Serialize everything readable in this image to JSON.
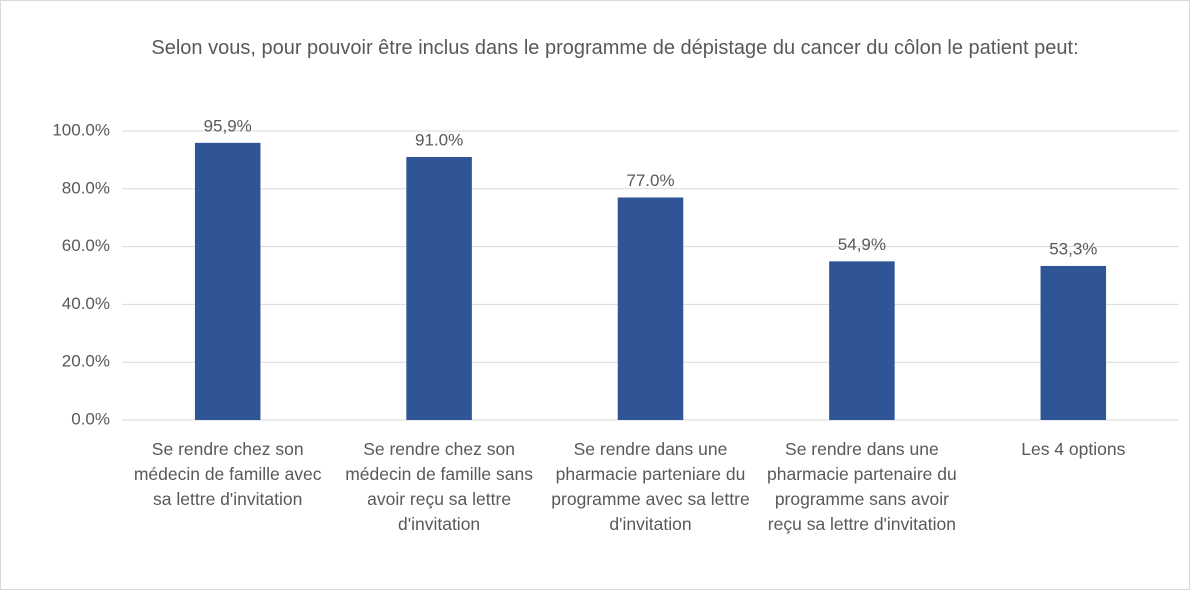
{
  "chart_data": {
    "type": "bar",
    "title": "Selon vous, pour pouvoir être inclus dans le programme de dépistage du cancer du côlon le patient peut:",
    "categories": [
      "Se rendre chez son médecin de famille avec sa lettre d'invitation",
      "Se rendre chez son médecin de famille sans avoir reçu sa lettre d'invitation",
      "Se rendre dans une pharmacie parteniare du programme avec sa lettre d'invitation",
      "Se rendre dans une pharmacie partenaire du programme sans avoir reçu sa lettre d'invitation",
      "Les 4 options"
    ],
    "values": [
      95.9,
      91.0,
      77.0,
      54.9,
      53.3
    ],
    "value_labels": [
      "95,9%",
      "91.0%",
      "77.0%",
      "54,9%",
      "53,3%"
    ],
    "color": "#2f5597",
    "ylim": [
      0,
      100
    ],
    "yticks": [
      {
        "value": 0,
        "label": "0.0%"
      },
      {
        "value": 20,
        "label": "20.0%"
      },
      {
        "value": 40,
        "label": "40.0%"
      },
      {
        "value": 60,
        "label": "60.0%"
      },
      {
        "value": 80,
        "label": "80.0%"
      },
      {
        "value": 100,
        "label": "100.0%"
      }
    ],
    "grid": true
  }
}
